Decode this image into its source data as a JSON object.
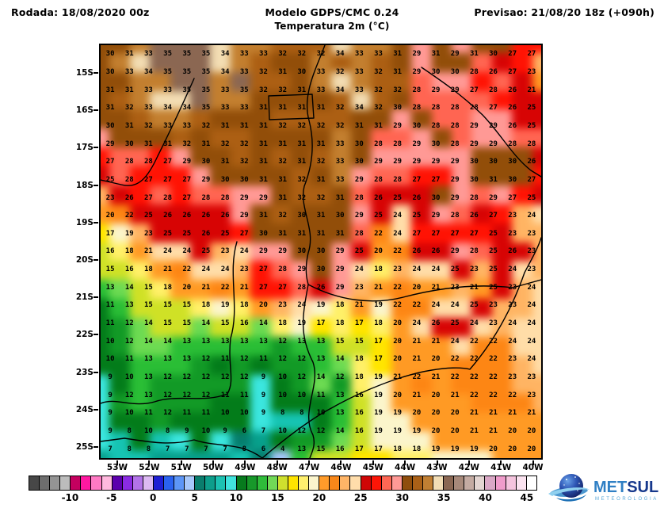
{
  "header": {
    "run_label": "Rodada: 18/08/2020 00z",
    "model_line": "Modelo GDPS/CMC 0.24",
    "variable_line": "Temperatura 2m (°C)",
    "forecast_label": "Previsao: 21/08/20 18z (+090h)"
  },
  "map": {
    "lat_labels": [
      "15S",
      "16S",
      "17S",
      "18S",
      "19S",
      "20S",
      "21S",
      "22S",
      "23S",
      "24S",
      "25S"
    ],
    "lon_labels": [
      "53W",
      "52W",
      "51W",
      "50W",
      "49W",
      "48W",
      "47W",
      "46W",
      "45W",
      "44W",
      "43W",
      "42W",
      "41W",
      "40W"
    ]
  },
  "legend": {
    "min_value": -15,
    "step": 1.25,
    "labels": [
      "-10",
      "-5",
      "0",
      "5",
      "10",
      "15",
      "20",
      "25",
      "30",
      "35",
      "40",
      "45"
    ],
    "label_values": [
      -10,
      -5,
      0,
      5,
      10,
      15,
      20,
      25,
      30,
      35,
      40,
      45
    ],
    "colors": [
      "#474747",
      "#6e6e6e",
      "#949494",
      "#bcbcbc",
      "#c4005f",
      "#ff18a0",
      "#ff7ac4",
      "#ffb9de",
      "#5c00ad",
      "#8a2be2",
      "#b273e8",
      "#dcb9f2",
      "#1f1fd4",
      "#2a62f0",
      "#5d96f7",
      "#a8c8fb",
      "#0a7d6d",
      "#0d9e8b",
      "#1cc2b2",
      "#41e4de",
      "#077a1d",
      "#17982a",
      "#2fbc3a",
      "#71d957",
      "#cfe02e",
      "#ffe400",
      "#fff06e",
      "#fbf5cd",
      "#ff9b2a",
      "#f8871a",
      "#ffb567",
      "#ffddab",
      "#cf0606",
      "#fb1507",
      "#fd6754",
      "#ff9a96",
      "#8f4e0d",
      "#a96017",
      "#c07f33",
      "#f2ddb5",
      "#8a6753",
      "#a7897a",
      "#c4aba2",
      "#e3d5d1",
      "#daa8c6",
      "#f09ccb",
      "#f5c4de",
      "#fbe3f0",
      "#ffffff"
    ]
  },
  "logo": {
    "name_primary": "MET",
    "name_secondary": "SUL",
    "tagline": "METEOROLOGIA",
    "colors": {
      "primary": "#2f7fc4",
      "secondary": "#16388c",
      "tagline": "#5aa8d8",
      "globe_light": "#4a7fd4",
      "globe_dark": "#131f63",
      "swoosh": "#8fd0ef"
    }
  },
  "chart_data": {
    "type": "heatmap",
    "title": "Temperatura 2m (°C)",
    "model": "Modelo GDPS/CMC 0.24",
    "run": "Rodada: 18/08/2020 00z",
    "valid": "Previsao: 21/08/20 18z (+090h)",
    "unit": "°C",
    "lat_range": [
      "15S",
      "25S"
    ],
    "lon_range": [
      "53W",
      "40W"
    ],
    "colorbar_range": [
      -10,
      45
    ],
    "values": [
      [
        30,
        31,
        33,
        35,
        35,
        35,
        34,
        33,
        33,
        32,
        32,
        32,
        34,
        33,
        33,
        31,
        29,
        31,
        29,
        31,
        30,
        27,
        27
      ],
      [
        30,
        33,
        34,
        35,
        35,
        35,
        34,
        33,
        32,
        31,
        30,
        33,
        32,
        33,
        32,
        31,
        29,
        30,
        30,
        28,
        26,
        27,
        23
      ],
      [
        31,
        31,
        33,
        33,
        35,
        35,
        33,
        35,
        32,
        32,
        31,
        33,
        34,
        33,
        32,
        32,
        28,
        29,
        29,
        27,
        28,
        26,
        21
      ],
      [
        31,
        32,
        33,
        34,
        34,
        35,
        33,
        33,
        31,
        31,
        31,
        31,
        32,
        34,
        32,
        30,
        28,
        28,
        28,
        28,
        27,
        26,
        25
      ],
      [
        30,
        31,
        32,
        33,
        33,
        32,
        31,
        31,
        31,
        32,
        32,
        32,
        32,
        31,
        31,
        29,
        30,
        28,
        28,
        29,
        29,
        26,
        25
      ],
      [
        29,
        30,
        31,
        31,
        32,
        31,
        32,
        32,
        31,
        31,
        31,
        31,
        33,
        30,
        28,
        28,
        29,
        30,
        28,
        29,
        29,
        28,
        28
      ],
      [
        27,
        28,
        28,
        27,
        29,
        30,
        31,
        32,
        31,
        32,
        31,
        32,
        33,
        30,
        29,
        29,
        29,
        29,
        29,
        30,
        30,
        30,
        26
      ],
      [
        25,
        28,
        27,
        27,
        27,
        29,
        30,
        30,
        31,
        31,
        32,
        31,
        33,
        29,
        28,
        28,
        27,
        27,
        29,
        30,
        31,
        30,
        27
      ],
      [
        23,
        26,
        27,
        28,
        27,
        28,
        28,
        29,
        29,
        31,
        32,
        32,
        31,
        28,
        26,
        25,
        26,
        30,
        29,
        28,
        29,
        27,
        25
      ],
      [
        20,
        22,
        25,
        26,
        26,
        26,
        26,
        29,
        31,
        32,
        30,
        31,
        30,
        29,
        25,
        24,
        25,
        29,
        28,
        26,
        27,
        23,
        24
      ],
      [
        17,
        19,
        23,
        25,
        25,
        26,
        25,
        27,
        30,
        31,
        31,
        31,
        31,
        28,
        22,
        24,
        27,
        27,
        27,
        27,
        25,
        23,
        23
      ],
      [
        16,
        18,
        21,
        24,
        24,
        25,
        23,
        24,
        29,
        29,
        30,
        30,
        29,
        25,
        20,
        22,
        26,
        26,
        29,
        28,
        25,
        26,
        23
      ],
      [
        15,
        16,
        18,
        21,
        22,
        24,
        24,
        23,
        27,
        28,
        29,
        30,
        29,
        24,
        18,
        23,
        24,
        24,
        25,
        23,
        25,
        24,
        23
      ],
      [
        13,
        14,
        15,
        18,
        20,
        21,
        22,
        21,
        27,
        27,
        28,
        26,
        29,
        23,
        21,
        22,
        20,
        21,
        23,
        21,
        25,
        23,
        24
      ],
      [
        11,
        13,
        15,
        15,
        15,
        18,
        19,
        18,
        20,
        23,
        24,
        19,
        18,
        21,
        19,
        22,
        22,
        24,
        24,
        25,
        23,
        23,
        24
      ],
      [
        11,
        12,
        14,
        15,
        15,
        14,
        15,
        16,
        14,
        18,
        19,
        17,
        18,
        17,
        18,
        20,
        24,
        26,
        25,
        24,
        23,
        24,
        24
      ],
      [
        10,
        12,
        14,
        14,
        13,
        13,
        13,
        13,
        13,
        12,
        13,
        13,
        15,
        15,
        17,
        20,
        21,
        21,
        24,
        22,
        22,
        24,
        24
      ],
      [
        10,
        11,
        13,
        13,
        13,
        12,
        11,
        12,
        11,
        12,
        12,
        13,
        14,
        18,
        17,
        20,
        21,
        20,
        22,
        22,
        22,
        23,
        24
      ],
      [
        9,
        10,
        13,
        12,
        12,
        12,
        12,
        12,
        9,
        10,
        12,
        14,
        12,
        18,
        19,
        21,
        22,
        21,
        22,
        22,
        22,
        23,
        23
      ],
      [
        9,
        12,
        13,
        12,
        12,
        12,
        11,
        11,
        9,
        10,
        10,
        11,
        13,
        16,
        19,
        20,
        21,
        20,
        21,
        22,
        22,
        22,
        23
      ],
      [
        9,
        10,
        11,
        12,
        11,
        11,
        10,
        10,
        9,
        8,
        8,
        10,
        13,
        16,
        19,
        19,
        20,
        20,
        20,
        21,
        21,
        21,
        21
      ],
      [
        9,
        8,
        10,
        8,
        9,
        10,
        9,
        6,
        7,
        10,
        12,
        12,
        14,
        16,
        19,
        19,
        19,
        20,
        20,
        21,
        21,
        20,
        20
      ],
      [
        7,
        8,
        8,
        7,
        7,
        7,
        7,
        8,
        6,
        4,
        13,
        15,
        16,
        17,
        17,
        18,
        18,
        19,
        19,
        19,
        20,
        20,
        20
      ]
    ]
  }
}
